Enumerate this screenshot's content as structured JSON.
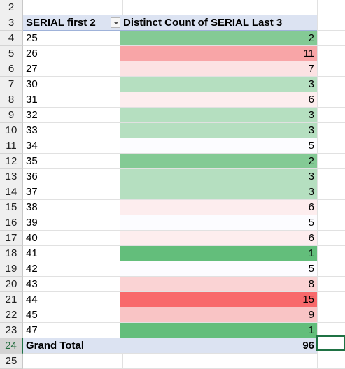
{
  "row_numbers": [
    "2",
    "3",
    "4",
    "5",
    "6",
    "7",
    "8",
    "9",
    "10",
    "11",
    "12",
    "13",
    "14",
    "15",
    "16",
    "17",
    "18",
    "19",
    "20",
    "21",
    "22",
    "23",
    "24",
    "25"
  ],
  "header": {
    "col_a": "SERIAL first 2",
    "col_b": "Distinct Count of SERIAL Last 3"
  },
  "rows": [
    {
      "serial": "25",
      "count": "2",
      "color": "#84ca95"
    },
    {
      "serial": "26",
      "count": "11",
      "color": "#f8a5a7"
    },
    {
      "serial": "27",
      "count": "7",
      "color": "#fce2e3"
    },
    {
      "serial": "30",
      "count": "3",
      "color": "#b5dfc0"
    },
    {
      "serial": "31",
      "count": "6",
      "color": "#fdedee"
    },
    {
      "serial": "32",
      "count": "3",
      "color": "#b5dfc0"
    },
    {
      "serial": "33",
      "count": "3",
      "color": "#b5dfc0"
    },
    {
      "serial": "34",
      "count": "5",
      "color": "#fcfcff"
    },
    {
      "serial": "35",
      "count": "2",
      "color": "#84ca95"
    },
    {
      "serial": "36",
      "count": "3",
      "color": "#b5dfc0"
    },
    {
      "serial": "37",
      "count": "3",
      "color": "#b5dfc0"
    },
    {
      "serial": "38",
      "count": "6",
      "color": "#fdedee"
    },
    {
      "serial": "39",
      "count": "5",
      "color": "#fcfcff"
    },
    {
      "serial": "40",
      "count": "6",
      "color": "#fdedee"
    },
    {
      "serial": "41",
      "count": "1",
      "color": "#63be7b"
    },
    {
      "serial": "42",
      "count": "5",
      "color": "#fcfcff"
    },
    {
      "serial": "43",
      "count": "8",
      "color": "#fad3d4"
    },
    {
      "serial": "44",
      "count": "15",
      "color": "#f8696b"
    },
    {
      "serial": "45",
      "count": "9",
      "color": "#f9c4c5"
    },
    {
      "serial": "47",
      "count": "1",
      "color": "#63be7b"
    }
  ],
  "total": {
    "label": "Grand Total",
    "value": "96"
  }
}
